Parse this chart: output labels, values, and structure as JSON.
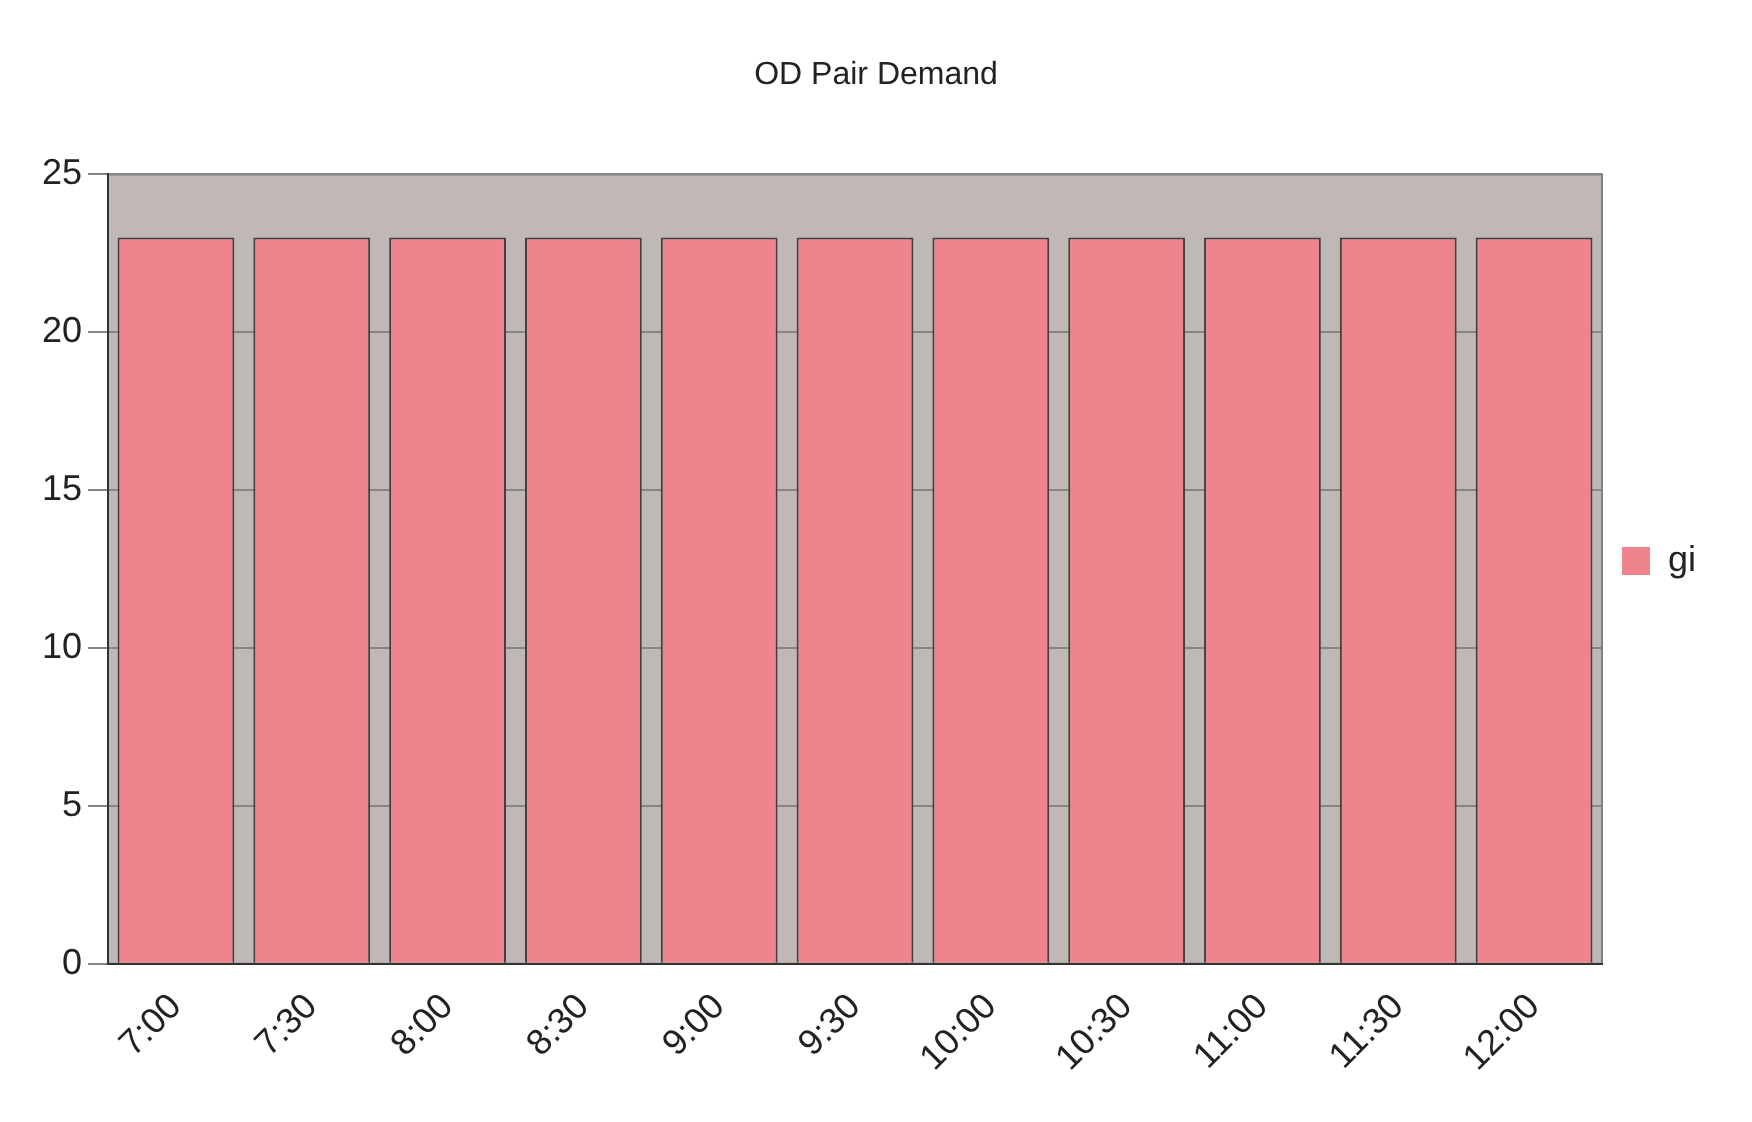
{
  "chart_data": {
    "type": "bar",
    "title": "OD Pair Demand",
    "categories": [
      "7:00",
      "7:30",
      "8:00",
      "8:30",
      "9:00",
      "9:30",
      "10:00",
      "10:30",
      "11:00",
      "11:30",
      "12:00"
    ],
    "series": [
      {
        "name": "gi",
        "color": "#f0848c",
        "values": [
          23,
          23,
          23,
          23,
          23,
          23,
          23,
          23,
          23,
          23,
          23
        ]
      }
    ],
    "ylim": [
      0,
      25
    ],
    "yticks": [
      0,
      5,
      10,
      15,
      20,
      25
    ],
    "grid": "y",
    "legend": "right"
  }
}
